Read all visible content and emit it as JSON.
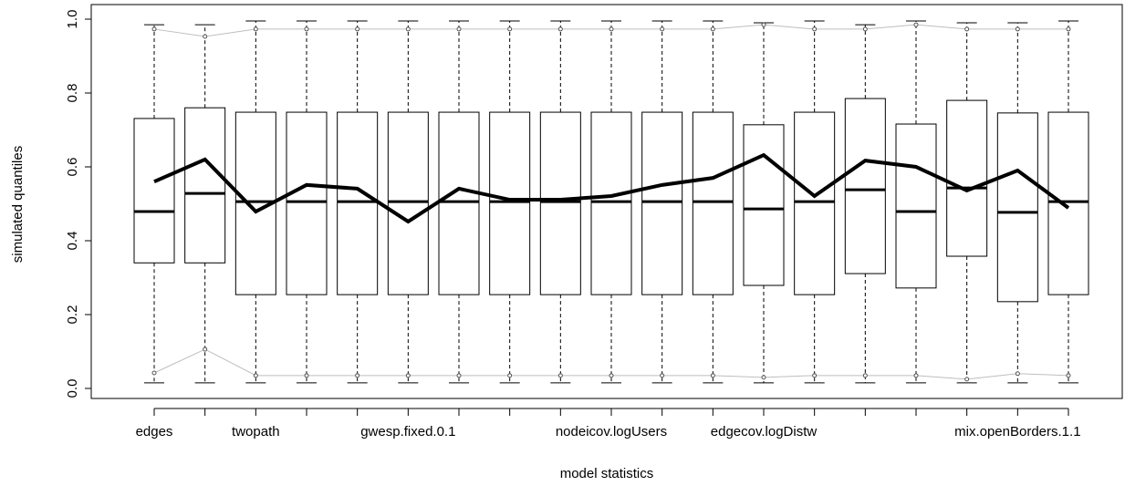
{
  "chart_data": {
    "type": "boxplot",
    "x_label": "model statistics",
    "y_label": "simulated quantiles",
    "categories": [
      "edges",
      null,
      "twopath",
      null,
      null,
      "gwesp.fixed.0.1",
      null,
      null,
      null,
      "nodeicov.logUsers",
      null,
      null,
      "edgecov.logDistw",
      null,
      null,
      null,
      null,
      "mix.openBorders.1.1",
      null
    ],
    "whisker_low": [
      0.015,
      0.015,
      0.015,
      0.015,
      0.015,
      0.015,
      0.015,
      0.015,
      0.015,
      0.015,
      0.015,
      0.015,
      0.015,
      0.015,
      0.015,
      0.015,
      0.015,
      0.015,
      0.015
    ],
    "q1": [
      0.34,
      0.34,
      0.254,
      0.254,
      0.254,
      0.254,
      0.254,
      0.254,
      0.254,
      0.254,
      0.254,
      0.254,
      0.279,
      0.254,
      0.311,
      0.272,
      0.358,
      0.235,
      0.254
    ],
    "median": [
      0.479,
      0.528,
      0.506,
      0.506,
      0.506,
      0.506,
      0.506,
      0.506,
      0.506,
      0.506,
      0.506,
      0.506,
      0.486,
      0.506,
      0.538,
      0.479,
      0.543,
      0.477,
      0.506
    ],
    "q3": [
      0.731,
      0.76,
      0.748,
      0.748,
      0.748,
      0.748,
      0.748,
      0.748,
      0.748,
      0.748,
      0.748,
      0.748,
      0.714,
      0.748,
      0.785,
      0.716,
      0.78,
      0.746,
      0.748
    ],
    "whisker_high": [
      0.985,
      0.985,
      0.995,
      0.995,
      0.995,
      0.995,
      0.995,
      0.995,
      0.995,
      0.995,
      0.995,
      0.995,
      0.99,
      0.995,
      0.985,
      0.995,
      0.99,
      0.99,
      0.995
    ],
    "observed": [
      0.56,
      0.62,
      0.479,
      0.551,
      0.541,
      0.452,
      0.541,
      0.511,
      0.511,
      0.521,
      0.551,
      0.57,
      0.632,
      0.521,
      0.617,
      0.6,
      0.536,
      0.59,
      0.489
    ],
    "band_low": [
      0.042,
      0.106,
      0.035,
      0.035,
      0.035,
      0.035,
      0.035,
      0.035,
      0.035,
      0.035,
      0.035,
      0.035,
      0.03,
      0.035,
      0.035,
      0.035,
      0.025,
      0.04,
      0.035
    ],
    "band_high": [
      0.973,
      0.953,
      0.973,
      0.973,
      0.973,
      0.973,
      0.973,
      0.973,
      0.973,
      0.973,
      0.973,
      0.973,
      0.985,
      0.973,
      0.973,
      0.985,
      0.973,
      0.973,
      0.973
    ],
    "observed_color": "#000000",
    "band_color": "#bebebe",
    "ylim": [
      0,
      1
    ],
    "yticks": [
      {
        "value": 0,
        "label": "0.0"
      },
      0.2,
      0.4,
      0.6,
      0.8,
      {
        "value": 1,
        "label": "1.0"
      }
    ]
  }
}
